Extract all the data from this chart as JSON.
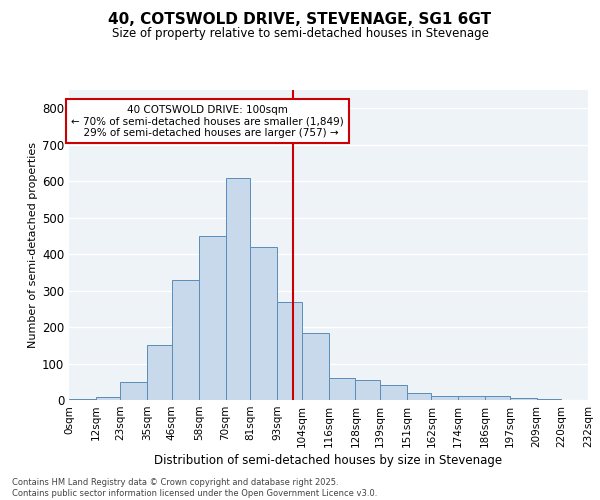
{
  "title": "40, COTSWOLD DRIVE, STEVENAGE, SG1 6GT",
  "subtitle": "Size of property relative to semi-detached houses in Stevenage",
  "xlabel": "Distribution of semi-detached houses by size in Stevenage",
  "ylabel": "Number of semi-detached properties",
  "property_size": 100,
  "pct_smaller": 70,
  "n_smaller": 1849,
  "pct_larger": 29,
  "n_larger": 757,
  "bin_edges": [
    0,
    12,
    23,
    35,
    46,
    58,
    70,
    81,
    93,
    104,
    116,
    128,
    139,
    151,
    162,
    174,
    186,
    197,
    209,
    220,
    232
  ],
  "bin_labels": [
    "0sqm",
    "12sqm",
    "23sqm",
    "35sqm",
    "46sqm",
    "58sqm",
    "70sqm",
    "81sqm",
    "93sqm",
    "104sqm",
    "116sqm",
    "128sqm",
    "139sqm",
    "151sqm",
    "162sqm",
    "174sqm",
    "186sqm",
    "197sqm",
    "209sqm",
    "220sqm",
    "232sqm"
  ],
  "bar_heights": [
    2,
    8,
    50,
    150,
    330,
    450,
    610,
    420,
    270,
    185,
    60,
    55,
    40,
    20,
    12,
    10,
    12,
    5,
    2,
    1
  ],
  "bar_color": "#c9d9ec",
  "bar_edge_color": "#5b8db8",
  "line_color": "#cc0000",
  "background_color": "#eef3f8",
  "grid_color": "#ffffff",
  "ylim": [
    0,
    850
  ],
  "yticks": [
    0,
    100,
    200,
    300,
    400,
    500,
    600,
    700,
    800
  ],
  "footer_line1": "Contains HM Land Registry data © Crown copyright and database right 2025.",
  "footer_line2": "Contains public sector information licensed under the Open Government Licence v3.0."
}
